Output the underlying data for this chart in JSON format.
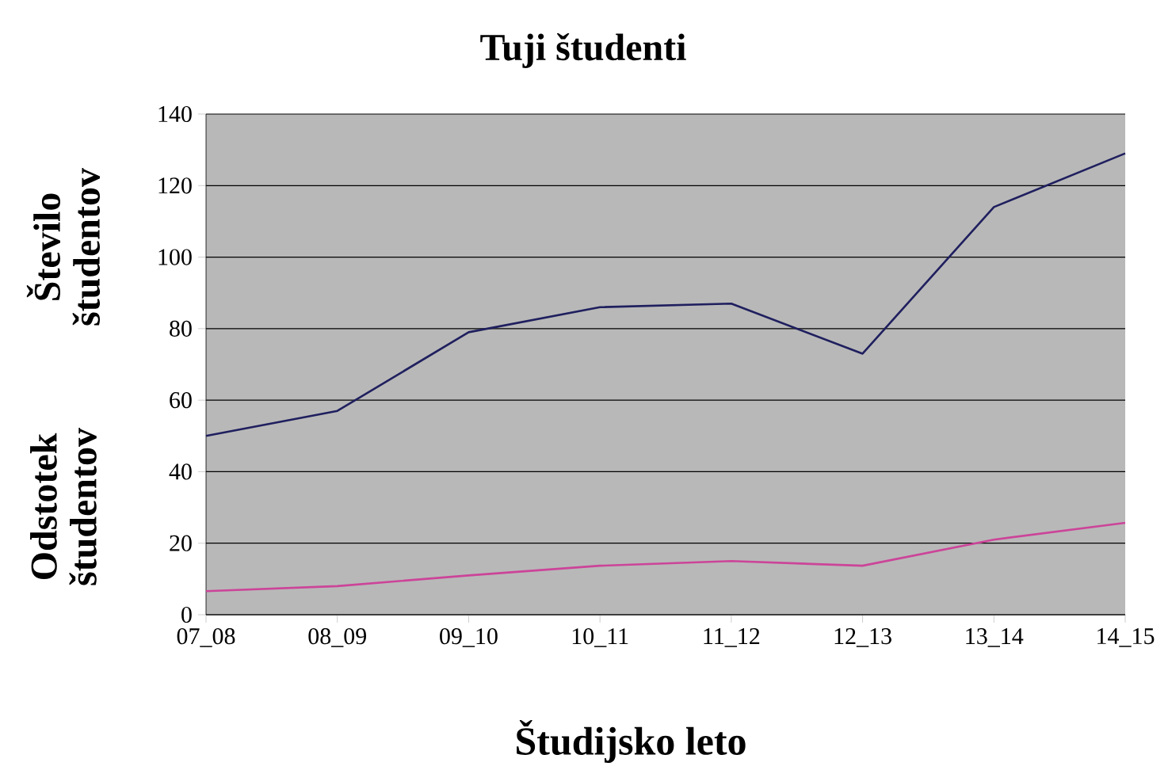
{
  "chart_data": {
    "type": "line",
    "title": "Tuji študenti",
    "xlabel": "Študijsko leto",
    "ylabel": "Število študentov",
    "y2label": "Odstotek študentov",
    "categories": [
      "07_08",
      "08_09",
      "09_10",
      "10_11",
      "11_12",
      "12_13",
      "13_14",
      "14_15"
    ],
    "series": [
      {
        "color": "#1f1f5f",
        "values": [
          50,
          57,
          79,
          86,
          87,
          73,
          114,
          129
        ]
      },
      {
        "color": "#cc4499",
        "values": [
          6.6,
          8,
          11,
          13.7,
          15,
          13.7,
          21,
          25.7
        ]
      }
    ],
    "ylim": [
      0,
      140
    ],
    "yticks": [
      0,
      20,
      40,
      60,
      80,
      100,
      120,
      140
    ],
    "grid": "y",
    "marker": "none",
    "line_style": "solid"
  }
}
